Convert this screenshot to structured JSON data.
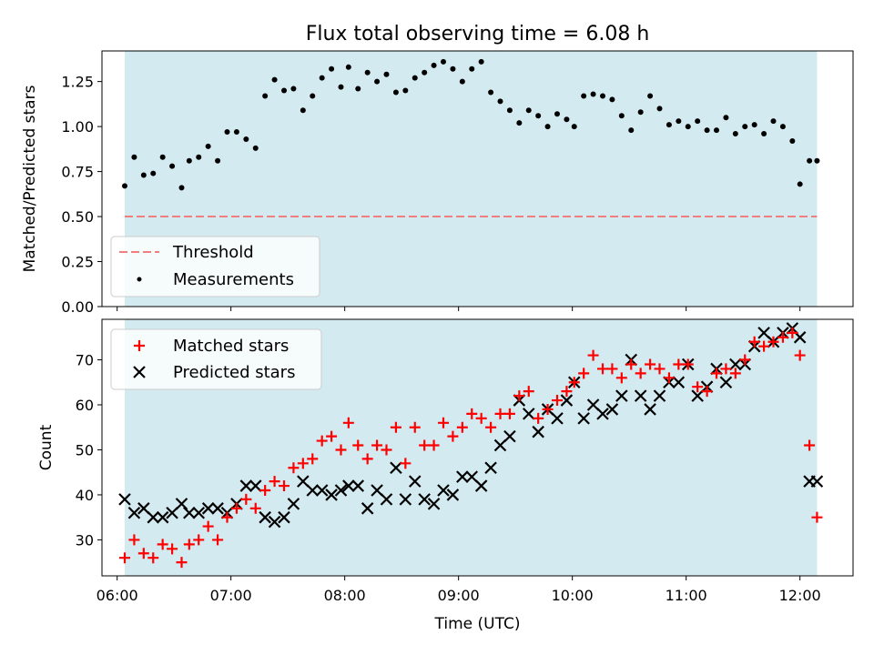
{
  "chart_data": [
    {
      "type": "scatter",
      "title": "Flux total observing time = 6.08 h",
      "xlabel": "",
      "ylabel": "Matched/Predicted stars",
      "ylim": [
        0,
        1.42
      ],
      "yticks": [
        "0.00",
        "0.25",
        "0.50",
        "0.75",
        "1.00",
        "1.25"
      ],
      "shaded_span": {
        "start": "06:04",
        "end": "12:09",
        "color": "#d3eaf0"
      },
      "threshold": {
        "name": "Threshold",
        "value": 0.5,
        "color": "#f08080"
      },
      "legend": {
        "placement": "lower-left",
        "entries": [
          "Threshold",
          "Measurements"
        ]
      },
      "series": [
        {
          "name": "Measurements",
          "color": "#000000",
          "x": [
            "06:04",
            "06:09",
            "06:14",
            "06:19",
            "06:24",
            "06:29",
            "06:34",
            "06:38",
            "06:43",
            "06:48",
            "06:53",
            "06:58",
            "07:03",
            "07:08",
            "07:13",
            "07:18",
            "07:23",
            "07:28",
            "07:33",
            "07:38",
            "07:43",
            "07:48",
            "07:53",
            "07:58",
            "08:02",
            "08:07",
            "08:12",
            "08:17",
            "08:22",
            "08:27",
            "08:32",
            "08:37",
            "08:42",
            "08:47",
            "08:52",
            "08:57",
            "09:02",
            "09:07",
            "09:12",
            "09:17",
            "09:22",
            "09:27",
            "09:32",
            "09:37",
            "09:42",
            "09:47",
            "09:52",
            "09:57",
            "10:01",
            "10:06",
            "10:11",
            "10:16",
            "10:21",
            "10:26",
            "10:31",
            "10:36",
            "10:41",
            "10:46",
            "10:51",
            "10:56",
            "11:01",
            "11:06",
            "11:11",
            "11:16",
            "11:21",
            "11:26",
            "11:31",
            "11:36",
            "11:41",
            "11:46",
            "11:51",
            "11:56",
            "12:00",
            "12:05",
            "12:09"
          ],
          "y": [
            0.67,
            0.83,
            0.73,
            0.74,
            0.83,
            0.78,
            0.66,
            0.81,
            0.83,
            0.89,
            0.81,
            0.97,
            0.97,
            0.93,
            0.88,
            1.17,
            1.26,
            1.2,
            1.21,
            1.09,
            1.17,
            1.27,
            1.32,
            1.22,
            1.33,
            1.21,
            1.3,
            1.25,
            1.29,
            1.19,
            1.2,
            1.27,
            1.3,
            1.34,
            1.36,
            1.32,
            1.25,
            1.32,
            1.36,
            1.19,
            1.14,
            1.09,
            1.02,
            1.09,
            1.06,
            1.0,
            1.07,
            1.04,
            1.0,
            1.17,
            1.18,
            1.17,
            1.15,
            1.06,
            0.98,
            1.08,
            1.17,
            1.1,
            1.01,
            1.03,
            1.0,
            1.03,
            0.98,
            0.98,
            1.05,
            0.96,
            1.0,
            1.01,
            0.96,
            1.03,
            1.0,
            0.92,
            0.68,
            0.81,
            0.81
          ]
        }
      ]
    },
    {
      "type": "scatter",
      "title": "",
      "xlabel": "Time (UTC)",
      "ylabel": "Count",
      "xlim": [
        "05:52",
        "12:28"
      ],
      "xticks": [
        "06:00",
        "07:00",
        "08:00",
        "09:00",
        "10:00",
        "11:00",
        "12:00"
      ],
      "ylim": [
        22,
        79
      ],
      "yticks": [
        "30",
        "40",
        "50",
        "60",
        "70"
      ],
      "shaded_span": {
        "start": "06:04",
        "end": "12:09",
        "color": "#d3eaf0"
      },
      "legend": {
        "placement": "top-left",
        "entries": [
          "Matched stars",
          "Predicted stars"
        ]
      },
      "series": [
        {
          "name": "Matched stars",
          "marker": "plus",
          "color": "#ff0000",
          "x": [
            "06:04",
            "06:09",
            "06:14",
            "06:19",
            "06:24",
            "06:29",
            "06:34",
            "06:38",
            "06:43",
            "06:48",
            "06:53",
            "06:58",
            "07:03",
            "07:08",
            "07:13",
            "07:18",
            "07:23",
            "07:28",
            "07:33",
            "07:38",
            "07:43",
            "07:48",
            "07:53",
            "07:58",
            "08:02",
            "08:07",
            "08:12",
            "08:17",
            "08:22",
            "08:27",
            "08:32",
            "08:37",
            "08:42",
            "08:47",
            "08:52",
            "08:57",
            "09:02",
            "09:07",
            "09:12",
            "09:17",
            "09:22",
            "09:27",
            "09:32",
            "09:37",
            "09:42",
            "09:47",
            "09:52",
            "09:57",
            "10:01",
            "10:06",
            "10:11",
            "10:16",
            "10:21",
            "10:26",
            "10:31",
            "10:36",
            "10:41",
            "10:46",
            "10:51",
            "10:56",
            "11:01",
            "11:06",
            "11:11",
            "11:16",
            "11:21",
            "11:26",
            "11:31",
            "11:36",
            "11:41",
            "11:46",
            "11:51",
            "11:56",
            "12:00",
            "12:05",
            "12:09"
          ],
          "y": [
            26,
            30,
            27,
            26,
            29,
            28,
            25,
            29,
            30,
            33,
            30,
            35,
            37,
            39,
            37,
            41,
            43,
            42,
            46,
            47,
            48,
            52,
            53,
            50,
            56,
            51,
            48,
            51,
            50,
            55,
            47,
            55,
            51,
            51,
            56,
            53,
            55,
            58,
            57,
            55,
            58,
            58,
            62,
            63,
            57,
            59,
            61,
            63,
            65,
            67,
            71,
            68,
            68,
            66,
            69,
            67,
            69,
            68,
            66,
            69,
            69,
            64,
            63,
            67,
            68,
            67,
            70,
            74,
            73,
            74,
            75,
            76,
            71,
            51,
            35
          ]
        },
        {
          "name": "Predicted stars",
          "marker": "x",
          "color": "#000000",
          "x": [
            "06:04",
            "06:09",
            "06:14",
            "06:19",
            "06:24",
            "06:29",
            "06:34",
            "06:38",
            "06:43",
            "06:48",
            "06:53",
            "06:58",
            "07:03",
            "07:08",
            "07:13",
            "07:18",
            "07:23",
            "07:28",
            "07:33",
            "07:38",
            "07:43",
            "07:48",
            "07:53",
            "07:58",
            "08:02",
            "08:07",
            "08:12",
            "08:17",
            "08:22",
            "08:27",
            "08:32",
            "08:37",
            "08:42",
            "08:47",
            "08:52",
            "08:57",
            "09:02",
            "09:07",
            "09:12",
            "09:17",
            "09:22",
            "09:27",
            "09:32",
            "09:37",
            "09:42",
            "09:47",
            "09:52",
            "09:57",
            "10:01",
            "10:06",
            "10:11",
            "10:16",
            "10:21",
            "10:26",
            "10:31",
            "10:36",
            "10:41",
            "10:46",
            "10:51",
            "10:56",
            "11:01",
            "11:06",
            "11:11",
            "11:16",
            "11:21",
            "11:26",
            "11:31",
            "11:36",
            "11:41",
            "11:46",
            "11:51",
            "11:56",
            "12:00",
            "12:05",
            "12:09"
          ],
          "y": [
            39,
            36,
            37,
            35,
            35,
            36,
            38,
            36,
            36,
            37,
            37,
            36,
            38,
            42,
            42,
            35,
            34,
            35,
            38,
            43,
            41,
            41,
            40,
            41,
            42,
            42,
            37,
            41,
            39,
            46,
            39,
            43,
            39,
            38,
            41,
            40,
            44,
            44,
            42,
            46,
            51,
            53,
            61,
            58,
            54,
            59,
            57,
            61,
            65,
            57,
            60,
            58,
            59,
            62,
            70,
            62,
            59,
            62,
            65,
            65,
            69,
            62,
            64,
            68,
            65,
            69,
            69,
            73,
            76,
            74,
            76,
            77,
            75,
            43,
            43
          ]
        }
      ]
    }
  ]
}
